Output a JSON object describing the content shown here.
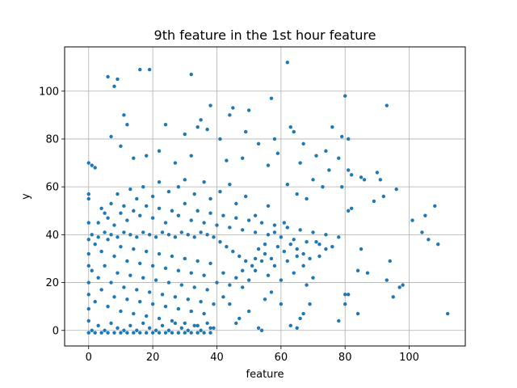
{
  "chart_data": {
    "type": "scatter",
    "title": "9th feature in the 1st hour feature",
    "xlabel": "feature",
    "ylabel": "y",
    "xlim": [
      -7.5,
      117.5
    ],
    "ylim": [
      -6.5,
      118.5
    ],
    "xticks": [
      0,
      20,
      40,
      60,
      80,
      100
    ],
    "yticks": [
      0,
      20,
      40,
      60,
      80,
      100
    ],
    "grid": true,
    "marker_color": "#1f77b4",
    "series": [
      {
        "points": [
          [
            62,
            112
          ],
          [
            6,
            106
          ],
          [
            9,
            105
          ],
          [
            8,
            102
          ],
          [
            16,
            109
          ],
          [
            19,
            109
          ],
          [
            32,
            107
          ],
          [
            80,
            98
          ],
          [
            93,
            94
          ],
          [
            11,
            90
          ],
          [
            38,
            94
          ],
          [
            45,
            93
          ],
          [
            50,
            92
          ],
          [
            57,
            97
          ],
          [
            44,
            90
          ],
          [
            35,
            88
          ],
          [
            34,
            85
          ],
          [
            30,
            82
          ],
          [
            37,
            84
          ],
          [
            41,
            80
          ],
          [
            49,
            83
          ],
          [
            53,
            78
          ],
          [
            58,
            80
          ],
          [
            63,
            85
          ],
          [
            64,
            83
          ],
          [
            67,
            78
          ],
          [
            76,
            85
          ],
          [
            79,
            81
          ],
          [
            81,
            80
          ],
          [
            74,
            75
          ],
          [
            78,
            72
          ],
          [
            12,
            86
          ],
          [
            24,
            86
          ],
          [
            14,
            72
          ],
          [
            7,
            81
          ],
          [
            10,
            77
          ],
          [
            0,
            70
          ],
          [
            1,
            69
          ],
          [
            2,
            68
          ],
          [
            18,
            73
          ],
          [
            22,
            75
          ],
          [
            27,
            70
          ],
          [
            32,
            73
          ],
          [
            43,
            71
          ],
          [
            48,
            72
          ],
          [
            56,
            69
          ],
          [
            59,
            74
          ],
          [
            66,
            70
          ],
          [
            71,
            73
          ],
          [
            75,
            67
          ],
          [
            81,
            67
          ],
          [
            82,
            65
          ],
          [
            85,
            64
          ],
          [
            86,
            63
          ],
          [
            90,
            66
          ],
          [
            91,
            63
          ],
          [
            96,
            59
          ],
          [
            89,
            54
          ],
          [
            92,
            56
          ],
          [
            82,
            51
          ],
          [
            81,
            50
          ],
          [
            79,
            60
          ],
          [
            73,
            60
          ],
          [
            70,
            63
          ],
          [
            65,
            57
          ],
          [
            68,
            55
          ],
          [
            62,
            61
          ],
          [
            0,
            57
          ],
          [
            0,
            55
          ],
          [
            0,
            45
          ],
          [
            101,
            46
          ],
          [
            104,
            41
          ],
          [
            105,
            48
          ],
          [
            106,
            38
          ],
          [
            108,
            52
          ],
          [
            109,
            36
          ],
          [
            112,
            7
          ],
          [
            97,
            18
          ],
          [
            98,
            19
          ],
          [
            93,
            21
          ],
          [
            94,
            29
          ],
          [
            95,
            14
          ],
          [
            87,
            24
          ],
          [
            85,
            34
          ],
          [
            84,
            25
          ],
          [
            84,
            7
          ],
          [
            81,
            15
          ],
          [
            80,
            11
          ],
          [
            80,
            15
          ],
          [
            78,
            4
          ],
          [
            72,
            31
          ],
          [
            74,
            34
          ],
          [
            71,
            37
          ],
          [
            70,
            22
          ],
          [
            68,
            19
          ],
          [
            69,
            11
          ],
          [
            67,
            7
          ],
          [
            65,
            1
          ],
          [
            66,
            5
          ],
          [
            63,
            2
          ],
          [
            60,
            11
          ],
          [
            57,
            16
          ],
          [
            55,
            13
          ],
          [
            53,
            1
          ],
          [
            54,
            0
          ],
          [
            50,
            8
          ],
          [
            47,
            5
          ],
          [
            46,
            3
          ],
          [
            44,
            11
          ],
          [
            42,
            14
          ],
          [
            48,
            25
          ],
          [
            52,
            30
          ],
          [
            55,
            36
          ],
          [
            58,
            41
          ],
          [
            61,
            45
          ],
          [
            56,
            52
          ],
          [
            52,
            48
          ],
          [
            49,
            56
          ],
          [
            46,
            53
          ],
          [
            44,
            61
          ],
          [
            41,
            58
          ],
          [
            38,
            55
          ],
          [
            36,
            62
          ],
          [
            33,
            57
          ],
          [
            30,
            63
          ],
          [
            28,
            60
          ],
          [
            25,
            58
          ],
          [
            22,
            62
          ],
          [
            20,
            56
          ],
          [
            17,
            60
          ],
          [
            15,
            55
          ],
          [
            13,
            59
          ],
          [
            11,
            52
          ],
          [
            9,
            57
          ],
          [
            7,
            53
          ],
          [
            5,
            49
          ],
          [
            3,
            45
          ],
          [
            4,
            51
          ],
          [
            6,
            47
          ],
          [
            8,
            44
          ],
          [
            10,
            49
          ],
          [
            12,
            46
          ],
          [
            14,
            50
          ],
          [
            16,
            48
          ],
          [
            18,
            52
          ],
          [
            20,
            47
          ],
          [
            22,
            51
          ],
          [
            24,
            45
          ],
          [
            26,
            50
          ],
          [
            28,
            48
          ],
          [
            30,
            53
          ],
          [
            32,
            46
          ],
          [
            34,
            50
          ],
          [
            36,
            45
          ],
          [
            38,
            49
          ],
          [
            40,
            44
          ],
          [
            42,
            48
          ],
          [
            44,
            43
          ],
          [
            46,
            47
          ],
          [
            48,
            42
          ],
          [
            50,
            46
          ],
          [
            52,
            41
          ],
          [
            54,
            45
          ],
          [
            56,
            40
          ],
          [
            58,
            44
          ],
          [
            60,
            39
          ],
          [
            62,
            43
          ],
          [
            64,
            38
          ],
          [
            66,
            42
          ],
          [
            68,
            37
          ],
          [
            70,
            41
          ],
          [
            72,
            36
          ],
          [
            74,
            40
          ],
          [
            76,
            35
          ],
          [
            78,
            39
          ],
          [
            62,
            29
          ],
          [
            65,
            31
          ],
          [
            67,
            27
          ],
          [
            64,
            24
          ],
          [
            60,
            21
          ],
          [
            58,
            27
          ],
          [
            56,
            23
          ],
          [
            54,
            29
          ],
          [
            52,
            25
          ],
          [
            50,
            21
          ],
          [
            48,
            18
          ],
          [
            46,
            22
          ],
          [
            44,
            19
          ],
          [
            42,
            24
          ],
          [
            40,
            20
          ],
          [
            2,
            36
          ],
          [
            4,
            33
          ],
          [
            6,
            38
          ],
          [
            8,
            31
          ],
          [
            10,
            35
          ],
          [
            12,
            29
          ],
          [
            14,
            34
          ],
          [
            16,
            28
          ],
          [
            18,
            33
          ],
          [
            20,
            27
          ],
          [
            22,
            32
          ],
          [
            24,
            26
          ],
          [
            26,
            31
          ],
          [
            28,
            25
          ],
          [
            30,
            30
          ],
          [
            32,
            24
          ],
          [
            34,
            29
          ],
          [
            36,
            23
          ],
          [
            38,
            28
          ],
          [
            1,
            25
          ],
          [
            3,
            22
          ],
          [
            5,
            27
          ],
          [
            7,
            20
          ],
          [
            9,
            24
          ],
          [
            11,
            18
          ],
          [
            13,
            23
          ],
          [
            15,
            17
          ],
          [
            17,
            22
          ],
          [
            19,
            16
          ],
          [
            21,
            21
          ],
          [
            23,
            15
          ],
          [
            25,
            20
          ],
          [
            27,
            14
          ],
          [
            29,
            19
          ],
          [
            31,
            13
          ],
          [
            33,
            18
          ],
          [
            35,
            12
          ],
          [
            37,
            17
          ],
          [
            39,
            11
          ],
          [
            0,
            15
          ],
          [
            2,
            12
          ],
          [
            4,
            17
          ],
          [
            6,
            10
          ],
          [
            8,
            14
          ],
          [
            10,
            8
          ],
          [
            12,
            13
          ],
          [
            14,
            7
          ],
          [
            16,
            12
          ],
          [
            18,
            6
          ],
          [
            20,
            11
          ],
          [
            22,
            5
          ],
          [
            24,
            10
          ],
          [
            26,
            4
          ],
          [
            28,
            9
          ],
          [
            30,
            3
          ],
          [
            32,
            8
          ],
          [
            34,
            2
          ],
          [
            36,
            7
          ],
          [
            38,
            1
          ],
          [
            0,
            4
          ],
          [
            1,
            0
          ],
          [
            3,
            2
          ],
          [
            5,
            0
          ],
          [
            7,
            3
          ],
          [
            9,
            1
          ],
          [
            11,
            0
          ],
          [
            13,
            2
          ],
          [
            15,
            0
          ],
          [
            17,
            3
          ],
          [
            19,
            1
          ],
          [
            21,
            0
          ],
          [
            23,
            2
          ],
          [
            25,
            0
          ],
          [
            27,
            3
          ],
          [
            29,
            1
          ],
          [
            31,
            0
          ],
          [
            33,
            2
          ],
          [
            35,
            0
          ],
          [
            37,
            3
          ],
          [
            39,
            1
          ],
          [
            0,
            -1
          ],
          [
            2,
            -1
          ],
          [
            4,
            -1
          ],
          [
            6,
            -1
          ],
          [
            8,
            -1
          ],
          [
            10,
            -1
          ],
          [
            12,
            -1
          ],
          [
            14,
            -1
          ],
          [
            16,
            -1
          ],
          [
            18,
            -1
          ],
          [
            20,
            -1
          ],
          [
            22,
            -1
          ],
          [
            24,
            -1
          ],
          [
            26,
            -1
          ],
          [
            28,
            -1
          ],
          [
            30,
            -1
          ],
          [
            32,
            -1
          ],
          [
            34,
            -1
          ],
          [
            36,
            -1
          ],
          [
            38,
            -1
          ],
          [
            0,
            9
          ],
          [
            0,
            20
          ],
          [
            0,
            27
          ],
          [
            0,
            32
          ],
          [
            0,
            38
          ],
          [
            1,
            40
          ],
          [
            3,
            39
          ],
          [
            5,
            41
          ],
          [
            7,
            40
          ],
          [
            9,
            39
          ],
          [
            11,
            41
          ],
          [
            13,
            40
          ],
          [
            15,
            39
          ],
          [
            17,
            41
          ],
          [
            19,
            40
          ],
          [
            21,
            39
          ],
          [
            23,
            41
          ],
          [
            25,
            40
          ],
          [
            27,
            39
          ],
          [
            29,
            41
          ],
          [
            31,
            40
          ],
          [
            33,
            39
          ],
          [
            35,
            41
          ],
          [
            37,
            40
          ],
          [
            39,
            39
          ],
          [
            41,
            37
          ],
          [
            43,
            35
          ],
          [
            45,
            33
          ],
          [
            47,
            31
          ],
          [
            49,
            29
          ],
          [
            51,
            27
          ],
          [
            53,
            34
          ],
          [
            55,
            32
          ],
          [
            57,
            30
          ],
          [
            59,
            35
          ],
          [
            61,
            33
          ],
          [
            63,
            36
          ],
          [
            65,
            34
          ],
          [
            67,
            32
          ],
          [
            69,
            30
          ]
        ]
      }
    ]
  }
}
